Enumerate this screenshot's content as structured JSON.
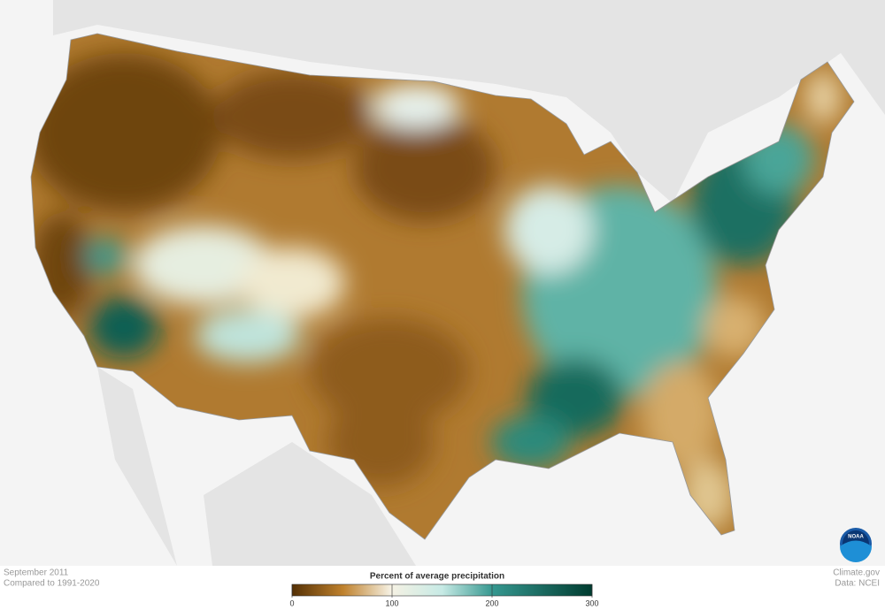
{
  "caption": {
    "period": "September 2011",
    "baseline": "Compared to 1991-2020"
  },
  "legend": {
    "title": "Percent of average precipitation",
    "range": [
      0,
      300
    ],
    "ticks": [
      0,
      100,
      200,
      300
    ]
  },
  "credits": {
    "site": "Climate.gov",
    "source": "Data: NCEI",
    "logo": "NOAA"
  }
}
